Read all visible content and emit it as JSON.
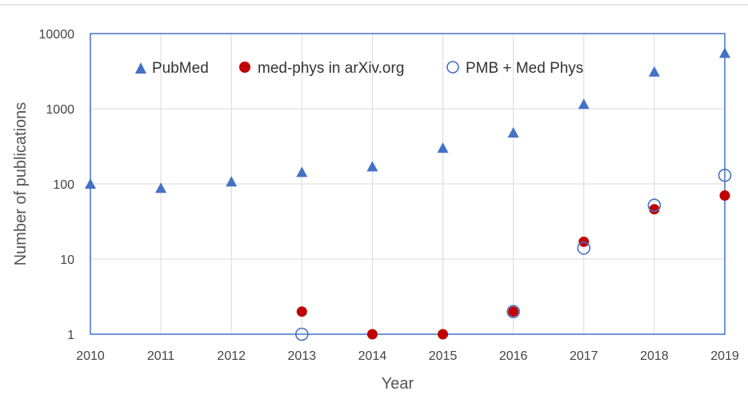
{
  "chart_data": {
    "type": "scatter",
    "title": "",
    "xlabel": "Year",
    "ylabel": "Number of publications",
    "x_ticks": [
      "2010",
      "2011",
      "2012",
      "2013",
      "2014",
      "2015",
      "2016",
      "2017",
      "2018",
      "2019"
    ],
    "y_ticks": [
      "1",
      "10",
      "100",
      "1000",
      "10000"
    ],
    "xlim": [
      2010,
      2019
    ],
    "ylim": [
      1,
      10000
    ],
    "y_scale": "log",
    "grid": "vertical",
    "legend_position": "top",
    "series": [
      {
        "name": "PubMed",
        "marker": "triangle",
        "color": "#4472C4",
        "points": [
          {
            "x": 2010,
            "y": 100
          },
          {
            "x": 2011,
            "y": 88
          },
          {
            "x": 2012,
            "y": 107
          },
          {
            "x": 2013,
            "y": 143
          },
          {
            "x": 2014,
            "y": 170
          },
          {
            "x": 2015,
            "y": 300
          },
          {
            "x": 2016,
            "y": 480
          },
          {
            "x": 2017,
            "y": 1150
          },
          {
            "x": 2018,
            "y": 3100
          },
          {
            "x": 2019,
            "y": 5500
          }
        ]
      },
      {
        "name": "med-phys in arXiv.org",
        "marker": "filled-circle",
        "color": "#C00000",
        "points": [
          {
            "x": 2013,
            "y": 2
          },
          {
            "x": 2014,
            "y": 1
          },
          {
            "x": 2015,
            "y": 1
          },
          {
            "x": 2016,
            "y": 2
          },
          {
            "x": 2017,
            "y": 17
          },
          {
            "x": 2018,
            "y": 46
          },
          {
            "x": 2019,
            "y": 70
          }
        ]
      },
      {
        "name": "PMB + Med Phys",
        "marker": "open-circle",
        "color": "#4472C4",
        "points": [
          {
            "x": 2013,
            "y": 1
          },
          {
            "x": 2016,
            "y": 2
          },
          {
            "x": 2017,
            "y": 14
          },
          {
            "x": 2018,
            "y": 52
          },
          {
            "x": 2019,
            "y": 130
          }
        ]
      }
    ]
  }
}
